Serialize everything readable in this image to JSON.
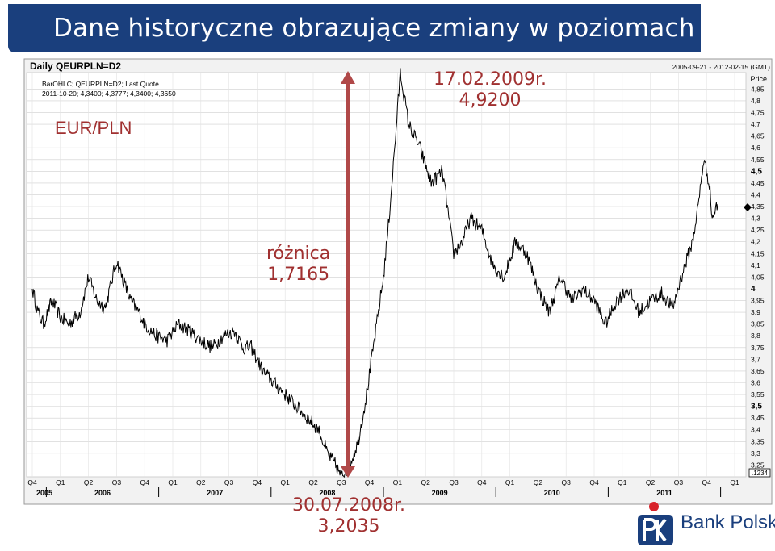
{
  "banner": {
    "title": "Dane historyczne obrazujące zmiany w poziomach kursów"
  },
  "chart_header": {
    "title": "Daily QEURPLN=D2",
    "line1": "BarOHLC; QEURPLN=D2; Last Quote",
    "line2": "2011-10-20; 4,3400; 4,3777; 4,3400; 4,3650",
    "date_range": "2005-09-21 - 2012-02-15 (GMT)",
    "price_label": "Price",
    "pair_label": "EUR/PLN",
    "last_marker": ".1234"
  },
  "annotations": {
    "peak_date": "17.02.2009r.",
    "peak_value": "4,9200",
    "diff_label": "różnica",
    "diff_value": "1,7165",
    "trough_date": "30.07.2008r.",
    "trough_value": "3,2035"
  },
  "logo": {
    "name": "Bank Polski"
  },
  "colors": {
    "banner": "#1a3f7d",
    "annotation": "#a03030",
    "series": "#000000",
    "grid": "#c8c8c8"
  },
  "chart_data": {
    "type": "line",
    "title": "Daily QEURPLN=D2",
    "x_range": [
      "2005-09-21",
      "2012-02-15"
    ],
    "ylim": [
      3.2,
      4.92
    ],
    "grid": true,
    "y_ticks": [
      "4,85",
      "4,8",
      "4,75",
      "4,7",
      "4,65",
      "4,6",
      "4,55",
      "4,5",
      "4,45",
      "4,4",
      "4,35",
      "4,3",
      "4,25",
      "4,2",
      "4,15",
      "4,1",
      "4,05",
      "4",
      "3,95",
      "3,9",
      "3,85",
      "3,8",
      "3,75",
      "3,7",
      "3,65",
      "3,6",
      "3,55",
      "3,5",
      "3,45",
      "3,4",
      "3,35",
      "3,3",
      "3,25"
    ],
    "y_tick_values": [
      4.85,
      4.8,
      4.75,
      4.7,
      4.65,
      4.6,
      4.55,
      4.5,
      4.45,
      4.4,
      4.35,
      4.3,
      4.25,
      4.2,
      4.15,
      4.1,
      4.05,
      4.0,
      3.95,
      3.9,
      3.85,
      3.8,
      3.75,
      3.7,
      3.65,
      3.6,
      3.55,
      3.5,
      3.45,
      3.4,
      3.35,
      3.3,
      3.25
    ],
    "quarter_labels": [
      "Q4",
      "Q1",
      "Q2",
      "Q3",
      "Q4",
      "Q1",
      "Q2",
      "Q3",
      "Q4",
      "Q1",
      "Q2",
      "Q3",
      "Q4",
      "Q1",
      "Q2",
      "Q3",
      "Q4",
      "Q1",
      "Q2",
      "Q3",
      "Q4",
      "Q1",
      "Q2",
      "Q3",
      "Q4",
      "Q1"
    ],
    "year_labels": [
      {
        "label": "2005",
        "q_index": 0
      },
      {
        "label": "2006",
        "q_index": 2.5
      },
      {
        "label": "2007",
        "q_index": 6.5
      },
      {
        "label": "2008",
        "q_index": 10.5
      },
      {
        "label": "2009",
        "q_index": 14.5
      },
      {
        "label": "2010",
        "q_index": 18.5
      },
      {
        "label": "2011",
        "q_index": 22.5
      }
    ],
    "series": [
      {
        "name": "QEURPLN=D2",
        "x_quarters": [
          0,
          0.2,
          0.4,
          0.7,
          1.0,
          1.3,
          1.7,
          2.0,
          2.3,
          2.6,
          3.0,
          3.2,
          3.5,
          3.8,
          4.0,
          4.4,
          4.8,
          5.2,
          5.6,
          6.0,
          6.4,
          6.8,
          7.2,
          7.5,
          7.8,
          8.2,
          8.6,
          9.0,
          9.4,
          9.8,
          10.2,
          10.5,
          10.8,
          11.0,
          11.3,
          11.6,
          11.9,
          12.2,
          12.5,
          12.7,
          12.9,
          13.1,
          13.4,
          13.8,
          14.2,
          14.6,
          15.0,
          15.3,
          15.6,
          16.0,
          16.4,
          16.8,
          17.2,
          17.6,
          18.0,
          18.4,
          18.8,
          19.2,
          19.6,
          20.0,
          20.4,
          20.8,
          21.2,
          21.6,
          22.0,
          22.4,
          22.8,
          23.1,
          23.5,
          23.7,
          23.9,
          24.1,
          24.2,
          24.4
        ],
        "values": [
          4.0,
          3.9,
          3.85,
          3.95,
          3.88,
          3.85,
          3.9,
          4.05,
          3.95,
          3.92,
          4.12,
          4.05,
          3.95,
          3.9,
          3.85,
          3.8,
          3.78,
          3.85,
          3.82,
          3.78,
          3.75,
          3.8,
          3.82,
          3.75,
          3.75,
          3.65,
          3.6,
          3.55,
          3.5,
          3.45,
          3.4,
          3.3,
          3.25,
          3.2,
          3.25,
          3.35,
          3.55,
          3.8,
          4.05,
          4.3,
          4.6,
          4.92,
          4.7,
          4.6,
          4.45,
          4.5,
          4.15,
          4.2,
          4.3,
          4.25,
          4.1,
          4.05,
          4.2,
          4.15,
          4.0,
          3.9,
          4.05,
          3.95,
          4.0,
          3.95,
          3.85,
          3.95,
          4.0,
          3.9,
          3.95,
          3.98,
          3.92,
          4.05,
          4.2,
          4.35,
          4.55,
          4.45,
          4.3,
          4.36
        ]
      }
    ]
  }
}
